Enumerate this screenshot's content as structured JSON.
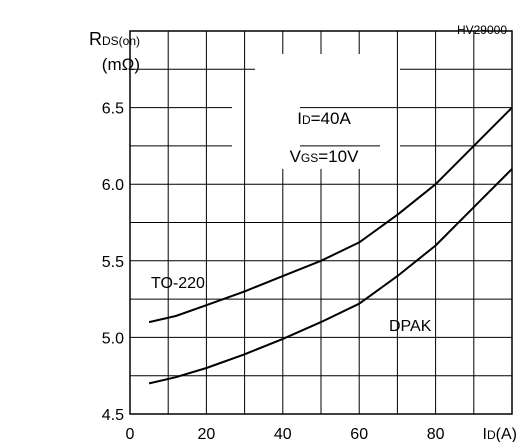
{
  "chart_data": {
    "type": "line",
    "figure_code": "HV29000",
    "ylabel_main": "R",
    "ylabel_sub": "DS(on)",
    "yunit": "(mΩ)",
    "xlabel_main": "I",
    "xlabel_sub": "D",
    "xunit": "(A)",
    "annotation_line1": {
      "main": "I",
      "sub": "D",
      "value": "=40A"
    },
    "annotation_line2": {
      "main": "V",
      "sub": "GS",
      "value": "=10V"
    },
    "xlim": [
      0,
      100
    ],
    "ylim": [
      4.5,
      7.0
    ],
    "x_grid_step": 10,
    "y_grid_step": 0.25,
    "x_ticks": [
      0,
      20,
      40,
      60,
      80
    ],
    "x_tick_labels": [
      "0",
      "20",
      "40",
      "60",
      "80"
    ],
    "y_ticks": [
      4.5,
      5.0,
      5.5,
      6.0,
      6.5
    ],
    "y_tick_labels": [
      "4.5",
      "5.0",
      "5.5",
      "6.0",
      "6.5"
    ],
    "series": [
      {
        "name": "TO-220",
        "x": [
          5,
          12,
          20,
          30,
          40,
          50,
          60,
          70,
          80,
          90,
          100
        ],
        "y": [
          5.1,
          5.14,
          5.21,
          5.3,
          5.4,
          5.5,
          5.62,
          5.8,
          6.0,
          6.25,
          6.5
        ]
      },
      {
        "name": "DPAK",
        "x": [
          5,
          12,
          20,
          30,
          40,
          50,
          60,
          70,
          80,
          90,
          100
        ],
        "y": [
          4.7,
          4.74,
          4.8,
          4.89,
          4.99,
          5.1,
          5.22,
          5.4,
          5.6,
          5.85,
          6.1
        ]
      }
    ]
  }
}
